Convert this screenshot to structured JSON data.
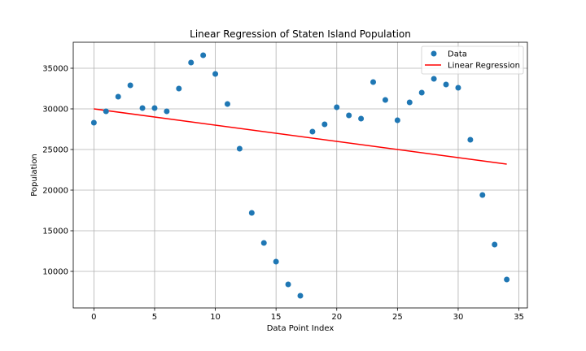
{
  "chart_data": {
    "type": "scatter",
    "title": "Linear Regression of Staten Island Population",
    "xlabel": "Data Point Index",
    "ylabel": "Population",
    "xlim": [
      -1.7,
      35.7
    ],
    "ylim": [
      5500,
      38200
    ],
    "xticks": [
      0,
      5,
      10,
      15,
      20,
      25,
      30,
      35
    ],
    "yticks": [
      10000,
      15000,
      20000,
      25000,
      30000,
      35000
    ],
    "grid": true,
    "legend_position": "top-right",
    "series": [
      {
        "name": "Data",
        "kind": "scatter",
        "color": "#1f77b4",
        "x": [
          0,
          1,
          2,
          3,
          4,
          5,
          6,
          7,
          8,
          9,
          10,
          11,
          12,
          13,
          14,
          15,
          16,
          17,
          18,
          19,
          20,
          21,
          22,
          23,
          24,
          25,
          26,
          27,
          28,
          29,
          30,
          31,
          32,
          33,
          34
        ],
        "y": [
          28300,
          29700,
          31500,
          32900,
          30100,
          30100,
          29700,
          32500,
          35700,
          36600,
          34300,
          30600,
          25100,
          17200,
          13500,
          11200,
          8400,
          7000,
          27200,
          28100,
          30200,
          29200,
          28800,
          33300,
          31100,
          28600,
          30800,
          32000,
          33700,
          33000,
          32600,
          26200,
          19400,
          13300,
          9000
        ]
      },
      {
        "name": "Linear Regression",
        "kind": "line",
        "color": "#ff0000",
        "x": [
          0,
          34
        ],
        "y": [
          30000,
          23200
        ]
      }
    ]
  }
}
